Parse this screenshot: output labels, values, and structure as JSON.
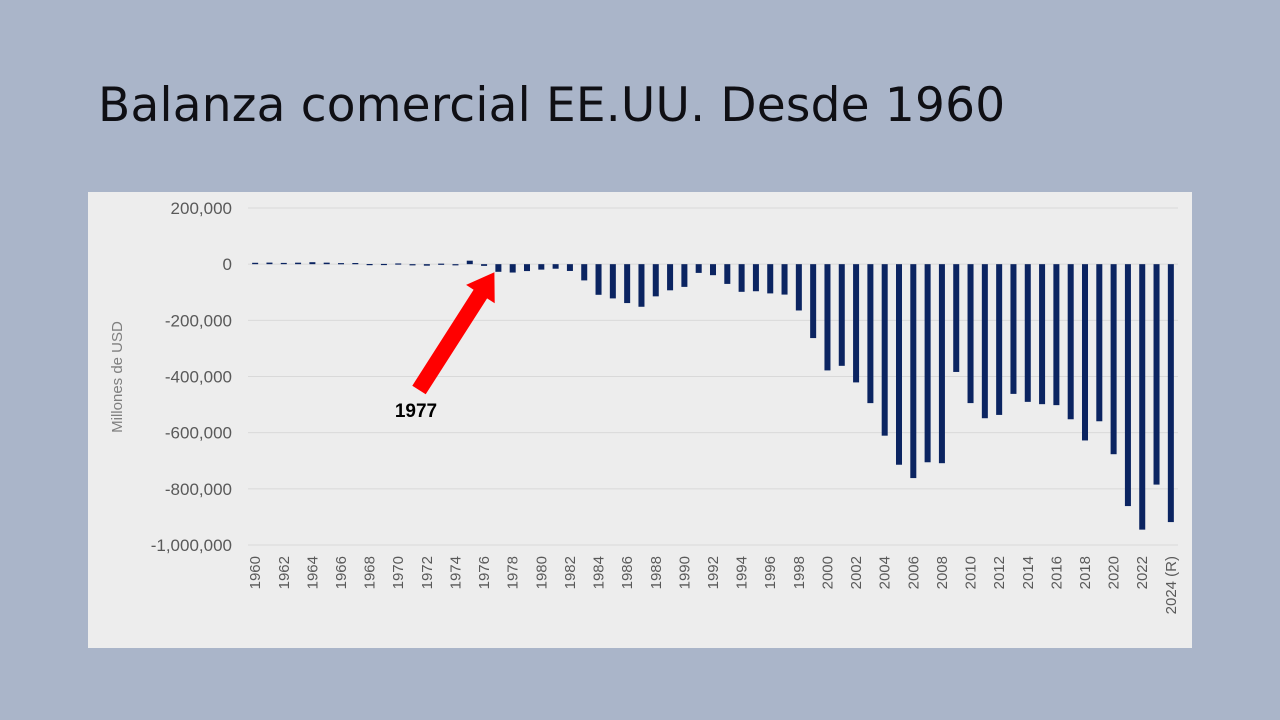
{
  "slide": {
    "title": "Balanza comercial EE.UU. Desde 1960"
  },
  "colors": {
    "background": "#aab5c9",
    "panel": "#ededed",
    "bar": "#0b2461",
    "arrow": "#ff0000",
    "grid": "#d9d9d9"
  },
  "chart_data": {
    "type": "bar",
    "title": "",
    "xlabel": "",
    "ylabel": "Millones de USD",
    "ylim": [
      -1000000,
      200000
    ],
    "grid": true,
    "legend": "none",
    "y_ticks": [
      200000,
      0,
      -200000,
      -400000,
      -600000,
      -800000,
      -1000000
    ],
    "y_tick_labels": [
      "200,000",
      "0",
      "-200,000",
      "-400,000",
      "-600,000",
      "-800,000",
      "-1,000,000"
    ],
    "x_tick_labels": [
      "1960",
      "1962",
      "1964",
      "1966",
      "1968",
      "1970",
      "1972",
      "1974",
      "1976",
      "1978",
      "1980",
      "1982",
      "1984",
      "1986",
      "1988",
      "1990",
      "1992",
      "1994",
      "1996",
      "1998",
      "2000",
      "2002",
      "2004",
      "2006",
      "2008",
      "2010",
      "2012",
      "2014",
      "2016",
      "2018",
      "2020",
      "2022",
      "2024 (R)"
    ],
    "categories": [
      "1960",
      "1961",
      "1962",
      "1963",
      "1964",
      "1965",
      "1966",
      "1967",
      "1968",
      "1969",
      "1970",
      "1971",
      "1972",
      "1973",
      "1974",
      "1975",
      "1976",
      "1977",
      "1978",
      "1979",
      "1980",
      "1981",
      "1982",
      "1983",
      "1984",
      "1985",
      "1986",
      "1987",
      "1988",
      "1989",
      "1990",
      "1991",
      "1992",
      "1993",
      "1994",
      "1995",
      "1996",
      "1997",
      "1998",
      "1999",
      "2000",
      "2001",
      "2002",
      "2003",
      "2004",
      "2005",
      "2006",
      "2007",
      "2008",
      "2009",
      "2010",
      "2011",
      "2012",
      "2013",
      "2014",
      "2015",
      "2016",
      "2017",
      "2018",
      "2019",
      "2020",
      "2021",
      "2022",
      "2023",
      "2024 (R)"
    ],
    "values": [
      4900,
      5600,
      4500,
      5300,
      7000,
      5400,
      3800,
      4100,
      600,
      900,
      2600,
      -1300,
      -5400,
      1900,
      -1700,
      12400,
      -6100,
      -27200,
      -29800,
      -24600,
      -19400,
      -16200,
      -24200,
      -57800,
      -109100,
      -121900,
      -138500,
      -151700,
      -114600,
      -93100,
      -80900,
      -31100,
      -39200,
      -70300,
      -98500,
      -96400,
      -104100,
      -108300,
      -164900,
      -263200,
      -378300,
      -362000,
      -421000,
      -494800,
      -610700,
      -714200,
      -761700,
      -705400,
      -708700,
      -383800,
      -494700,
      -548600,
      -536800,
      -461900,
      -490300,
      -498500,
      -502000,
      -552300,
      -627700,
      -559400,
      -676700,
      -861400,
      -945300,
      -784900,
      -918400
    ],
    "annotation": {
      "text": "1977",
      "arrow_target_year": "1977"
    }
  }
}
